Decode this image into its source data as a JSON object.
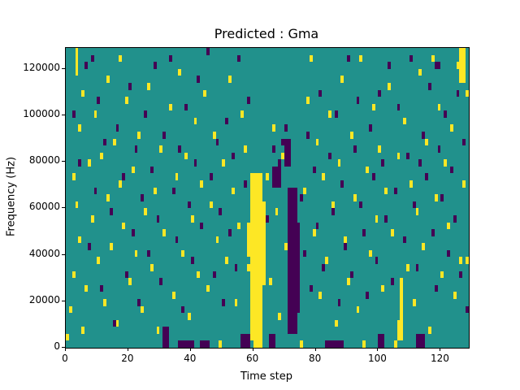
{
  "figure": {
    "title": "Predicted : Gma",
    "xlabel": "Time step",
    "ylabel": "Frequency (Hz)"
  },
  "chart_data": {
    "type": "heatmap",
    "title": "Predicted : Gma",
    "xlabel": "Time step",
    "ylabel": "Frequency (Hz)",
    "x_range": [
      0,
      129
    ],
    "y_range": [
      0,
      129000
    ],
    "grid": {
      "cols": 129,
      "rows": 43,
      "hz_per_row": 3000
    },
    "legend": "none",
    "colormap": {
      "name": "viridis-like",
      "background_teal": "#21918c",
      "high_yellow": "#fde725",
      "low_purple": "#440154"
    },
    "x_ticks": [
      {
        "value": 0,
        "label": "0"
      },
      {
        "value": 20,
        "label": "20"
      },
      {
        "value": 40,
        "label": "40"
      },
      {
        "value": 60,
        "label": "60"
      },
      {
        "value": 80,
        "label": "80"
      },
      {
        "value": 100,
        "label": "100"
      },
      {
        "value": 120,
        "label": "120"
      }
    ],
    "y_ticks": [
      {
        "value": 0,
        "label": "0"
      },
      {
        "value": 20000,
        "label": "20000"
      },
      {
        "value": 40000,
        "label": "40000"
      },
      {
        "value": 60000,
        "label": "60000"
      },
      {
        "value": 80000,
        "label": "80000"
      },
      {
        "value": 100000,
        "label": "100000"
      },
      {
        "value": 120000,
        "label": "120000"
      }
    ],
    "notable_features": [
      "solid yellow vertical band around time steps 59-63 spanning ~3000-75000 Hz",
      "dark purple vertical band around time steps 71-75 spanning ~6000-69000 Hz",
      "thin yellow streak near time step 107 at low frequencies",
      "sparse yellow and purple speckle noise over a uniform teal background"
    ],
    "yellow_rects": [
      {
        "x": 59,
        "y": 1,
        "w": 4,
        "h": 24
      },
      {
        "x": 63,
        "y": 9,
        "w": 1,
        "h": 12
      },
      {
        "x": 58,
        "y": 13,
        "w": 1,
        "h": 5
      },
      {
        "x": 60,
        "y": 0,
        "w": 3,
        "h": 1
      },
      {
        "x": 107,
        "y": 1,
        "w": 1,
        "h": 9
      },
      {
        "x": 106,
        "y": 1,
        "w": 1,
        "h": 3
      },
      {
        "x": 126,
        "y": 38,
        "w": 2,
        "h": 5
      },
      {
        "x": 3,
        "y": 39,
        "w": 1,
        "h": 4
      }
    ],
    "purple_rects": [
      {
        "x": 71,
        "y": 2,
        "w": 3,
        "h": 21
      },
      {
        "x": 74,
        "y": 5,
        "w": 1,
        "h": 13
      },
      {
        "x": 66,
        "y": 23,
        "w": 3,
        "h": 3
      },
      {
        "x": 70,
        "y": 26,
        "w": 2,
        "h": 4
      },
      {
        "x": 36,
        "y": 0,
        "w": 5,
        "h": 1
      },
      {
        "x": 43,
        "y": 0,
        "w": 3,
        "h": 1
      },
      {
        "x": 84,
        "y": 0,
        "w": 5,
        "h": 1
      },
      {
        "x": 56,
        "y": 0,
        "w": 3,
        "h": 2
      },
      {
        "x": 65,
        "y": 0,
        "w": 2,
        "h": 2
      },
      {
        "x": 31,
        "y": 0,
        "w": 2,
        "h": 3
      },
      {
        "x": 100,
        "y": 0,
        "w": 2,
        "h": 2
      },
      {
        "x": 112,
        "y": 0,
        "w": 3,
        "h": 2
      },
      {
        "x": 118,
        "y": 40,
        "w": 2,
        "h": 1
      }
    ],
    "yellow_cells": [
      [
        0,
        1
      ],
      [
        1,
        5
      ],
      [
        2,
        10
      ],
      [
        3,
        20
      ],
      [
        4,
        31
      ],
      [
        5,
        36
      ],
      [
        2,
        24
      ],
      [
        4,
        15
      ],
      [
        6,
        8
      ],
      [
        7,
        26
      ],
      [
        8,
        18
      ],
      [
        5,
        2
      ],
      [
        9,
        33
      ],
      [
        10,
        12
      ],
      [
        11,
        27
      ],
      [
        12,
        6
      ],
      [
        13,
        38
      ],
      [
        13,
        21
      ],
      [
        14,
        14
      ],
      [
        15,
        29
      ],
      [
        16,
        3
      ],
      [
        17,
        41
      ],
      [
        17,
        23
      ],
      [
        18,
        17
      ],
      [
        19,
        35
      ],
      [
        20,
        9
      ],
      [
        21,
        25
      ],
      [
        22,
        13
      ],
      [
        23,
        30
      ],
      [
        24,
        5
      ],
      [
        25,
        19
      ],
      [
        26,
        37
      ],
      [
        27,
        11
      ],
      [
        28,
        22
      ],
      [
        29,
        2
      ],
      [
        30,
        28
      ],
      [
        31,
        16
      ],
      [
        33,
        34
      ],
      [
        34,
        7
      ],
      [
        35,
        24
      ],
      [
        36,
        39
      ],
      [
        37,
        13
      ],
      [
        38,
        27
      ],
      [
        39,
        4
      ],
      [
        40,
        18
      ],
      [
        41,
        32
      ],
      [
        42,
        10
      ],
      [
        43,
        23
      ],
      [
        44,
        36
      ],
      [
        45,
        8
      ],
      [
        46,
        20
      ],
      [
        47,
        30
      ],
      [
        48,
        15
      ],
      [
        49,
        0
      ],
      [
        50,
        26
      ],
      [
        51,
        12
      ],
      [
        52,
        38
      ],
      [
        53,
        22
      ],
      [
        54,
        6
      ],
      [
        55,
        17
      ],
      [
        56,
        33
      ],
      [
        57,
        28
      ],
      [
        58,
        11
      ],
      [
        64,
        24
      ],
      [
        65,
        9
      ],
      [
        66,
        31
      ],
      [
        67,
        19
      ],
      [
        68,
        4
      ],
      [
        69,
        27
      ],
      [
        70,
        14
      ],
      [
        75,
        0
      ],
      [
        76,
        22
      ],
      [
        77,
        35
      ],
      [
        78,
        41
      ],
      [
        79,
        16
      ],
      [
        80,
        29
      ],
      [
        81,
        7
      ],
      [
        82,
        24
      ],
      [
        83,
        12
      ],
      [
        84,
        33
      ],
      [
        85,
        20
      ],
      [
        86,
        3
      ],
      [
        87,
        26
      ],
      [
        88,
        38
      ],
      [
        89,
        15
      ],
      [
        90,
        9
      ],
      [
        91,
        30
      ],
      [
        92,
        21
      ],
      [
        93,
        5
      ],
      [
        94,
        41
      ],
      [
        95,
        0
      ],
      [
        96,
        25
      ],
      [
        97,
        13
      ],
      [
        98,
        34
      ],
      [
        99,
        18
      ],
      [
        100,
        28
      ],
      [
        101,
        8
      ],
      [
        102,
        22
      ],
      [
        103,
        37
      ],
      [
        104,
        16
      ],
      [
        105,
        0
      ],
      [
        106,
        27
      ],
      [
        108,
        32
      ],
      [
        109,
        11
      ],
      [
        110,
        23
      ],
      [
        111,
        6
      ],
      [
        112,
        19
      ],
      [
        113,
        39
      ],
      [
        114,
        14
      ],
      [
        115,
        29
      ],
      [
        116,
        2
      ],
      [
        117,
        41
      ],
      [
        118,
        21
      ],
      [
        119,
        34
      ],
      [
        120,
        10
      ],
      [
        121,
        26
      ],
      [
        122,
        17
      ],
      [
        123,
        31
      ],
      [
        124,
        7
      ],
      [
        125,
        40
      ],
      [
        126,
        12
      ],
      [
        127,
        23
      ],
      [
        128,
        36
      ],
      [
        128,
        12
      ]
    ],
    "purple_cells": [
      [
        2,
        33
      ],
      [
        4,
        26
      ],
      [
        6,
        40
      ],
      [
        7,
        14
      ],
      [
        8,
        41
      ],
      [
        9,
        22
      ],
      [
        10,
        35
      ],
      [
        11,
        8
      ],
      [
        12,
        29
      ],
      [
        14,
        19
      ],
      [
        15,
        3
      ],
      [
        16,
        31
      ],
      [
        18,
        24
      ],
      [
        19,
        10
      ],
      [
        20,
        37
      ],
      [
        21,
        16
      ],
      [
        22,
        28
      ],
      [
        23,
        6
      ],
      [
        24,
        21
      ],
      [
        25,
        33
      ],
      [
        26,
        13
      ],
      [
        27,
        25
      ],
      [
        28,
        40
      ],
      [
        29,
        18
      ],
      [
        30,
        9
      ],
      [
        31,
        30
      ],
      [
        33,
        41
      ],
      [
        34,
        22
      ],
      [
        35,
        15
      ],
      [
        36,
        28
      ],
      [
        37,
        5
      ],
      [
        38,
        34
      ],
      [
        39,
        20
      ],
      [
        40,
        12
      ],
      [
        41,
        26
      ],
      [
        42,
        38
      ],
      [
        43,
        17
      ],
      [
        44,
        0
      ],
      [
        45,
        42
      ],
      [
        46,
        24
      ],
      [
        47,
        10
      ],
      [
        48,
        29
      ],
      [
        49,
        19
      ],
      [
        50,
        6
      ],
      [
        51,
        32
      ],
      [
        52,
        16
      ],
      [
        53,
        27
      ],
      [
        54,
        11
      ],
      [
        55,
        41
      ],
      [
        57,
        23
      ],
      [
        58,
        35
      ],
      [
        64,
        18
      ],
      [
        65,
        0
      ],
      [
        66,
        28
      ],
      [
        67,
        24
      ],
      [
        68,
        26
      ],
      [
        69,
        29
      ],
      [
        70,
        31
      ],
      [
        75,
        21
      ],
      [
        76,
        13
      ],
      [
        77,
        30
      ],
      [
        78,
        8
      ],
      [
        79,
        25
      ],
      [
        80,
        17
      ],
      [
        81,
        36
      ],
      [
        82,
        11
      ],
      [
        83,
        0
      ],
      [
        84,
        27
      ],
      [
        85,
        19
      ],
      [
        86,
        33
      ],
      [
        87,
        6
      ],
      [
        88,
        23
      ],
      [
        89,
        14
      ],
      [
        90,
        41
      ],
      [
        91,
        10
      ],
      [
        92,
        28
      ],
      [
        93,
        35
      ],
      [
        94,
        20
      ],
      [
        95,
        16
      ],
      [
        96,
        7
      ],
      [
        97,
        31
      ],
      [
        98,
        24
      ],
      [
        99,
        12
      ],
      [
        100,
        36
      ],
      [
        101,
        26
      ],
      [
        102,
        18
      ],
      [
        103,
        40
      ],
      [
        104,
        9
      ],
      [
        105,
        22
      ],
      [
        106,
        34
      ],
      [
        108,
        15
      ],
      [
        109,
        27
      ],
      [
        110,
        41
      ],
      [
        111,
        20
      ],
      [
        112,
        11
      ],
      [
        113,
        26
      ],
      [
        114,
        30
      ],
      [
        115,
        24
      ],
      [
        116,
        37
      ],
      [
        117,
        16
      ],
      [
        118,
        8
      ],
      [
        119,
        28
      ],
      [
        120,
        21
      ],
      [
        121,
        33
      ],
      [
        122,
        13
      ],
      [
        123,
        25
      ],
      [
        124,
        18
      ],
      [
        125,
        36
      ],
      [
        126,
        10
      ],
      [
        127,
        29
      ],
      [
        128,
        5
      ]
    ]
  }
}
